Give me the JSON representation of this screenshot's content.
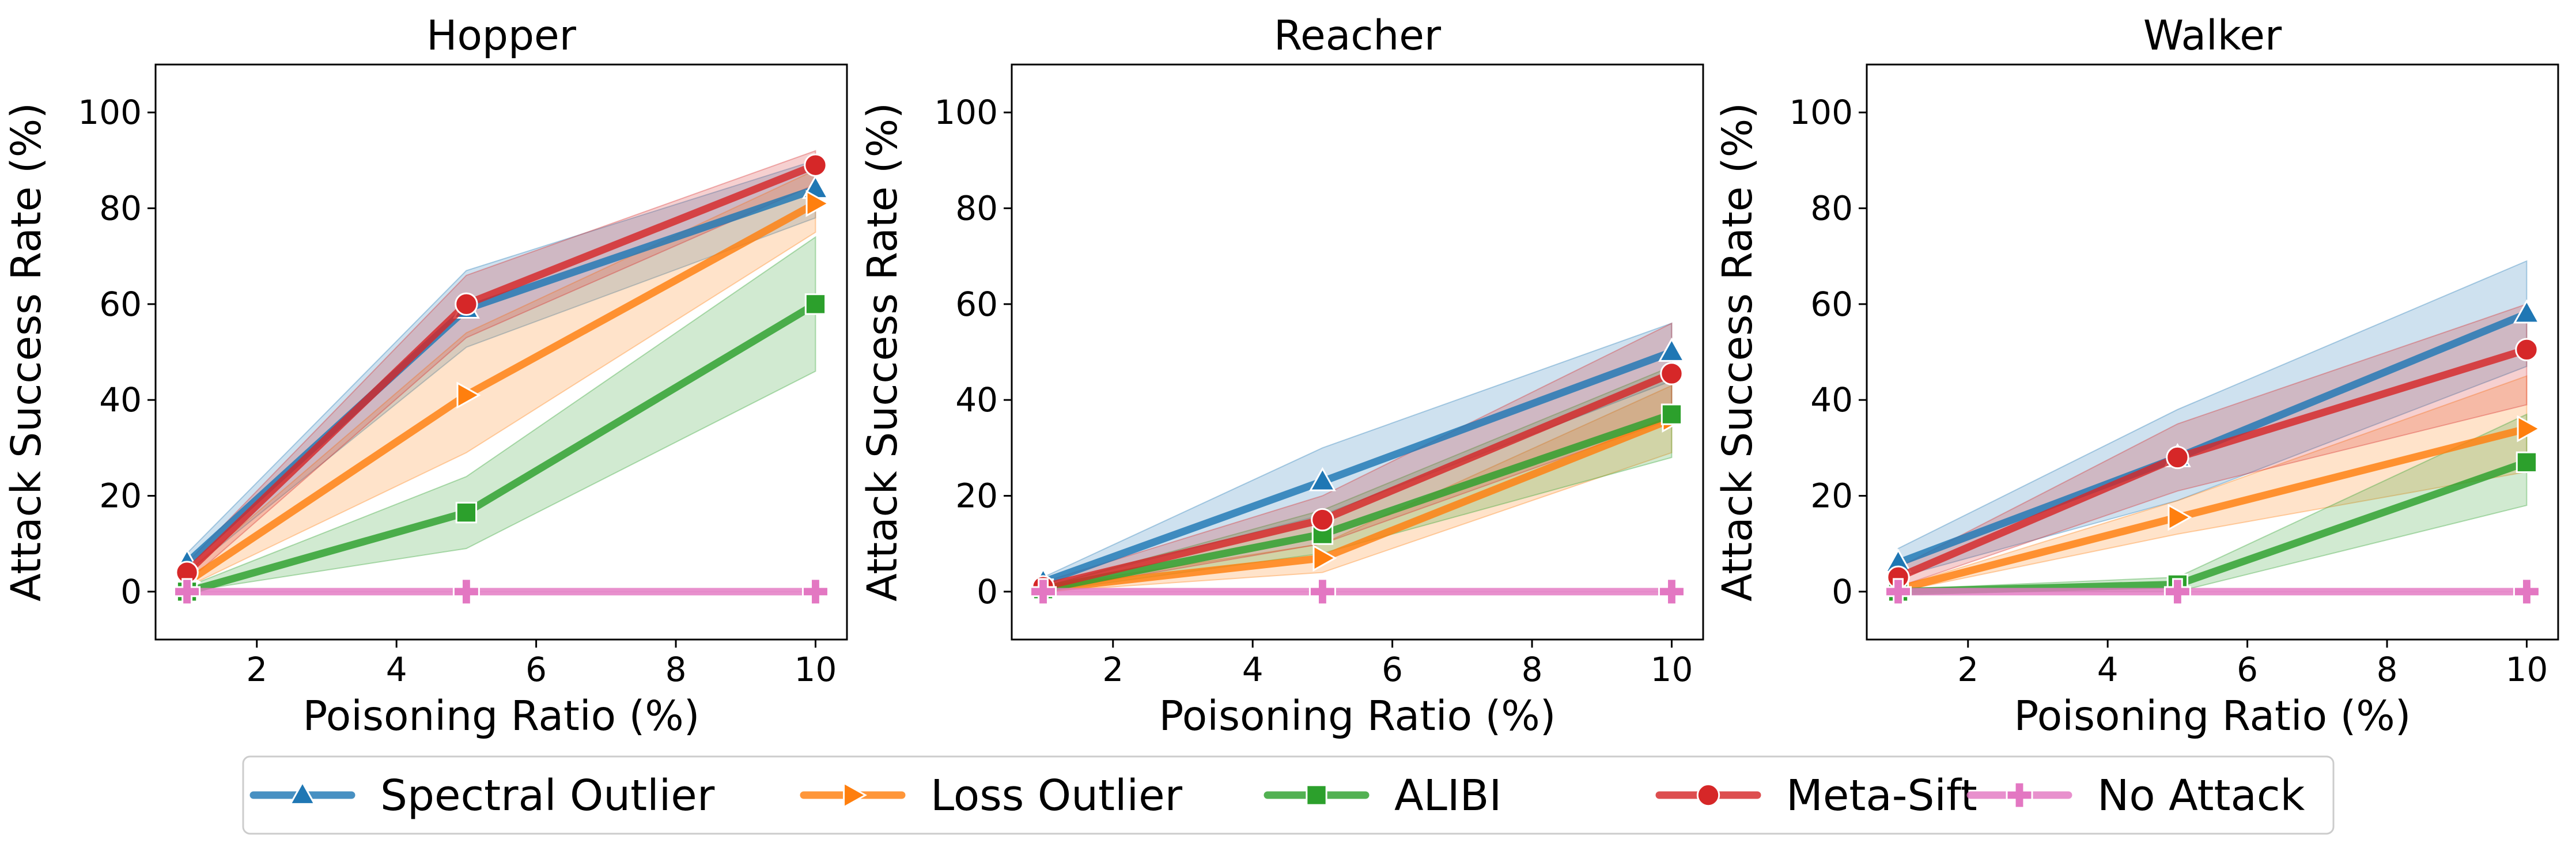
{
  "chart_data": {
    "type": "line",
    "legend": {
      "position": "bottom-center",
      "entries": [
        {
          "name": "Spectral Outlier",
          "color": "#1f77b4",
          "marker": "triangle-up"
        },
        {
          "name": "Loss Outlier",
          "color": "#ff7f0e",
          "marker": "triangle-right"
        },
        {
          "name": "ALIBI",
          "color": "#2ca02c",
          "marker": "square"
        },
        {
          "name": "Meta-Sift",
          "color": "#d62728",
          "marker": "circle"
        },
        {
          "name": "No Attack",
          "color": "#e377c2",
          "marker": "plus"
        }
      ]
    },
    "panels": [
      {
        "title": "Hopper",
        "xlabel": "Poisoning Ratio (%)",
        "ylabel": "Attack Success Rate (%)",
        "xlim": [
          0.55,
          10.45
        ],
        "ylim": [
          -10,
          110
        ],
        "xticks": [
          2,
          4,
          6,
          8,
          10
        ],
        "yticks": [
          0,
          20,
          40,
          60,
          80,
          100
        ],
        "x": [
          1,
          5,
          10
        ],
        "series": [
          {
            "name": "Spectral Outlier",
            "values": [
              6,
              59,
              84
            ],
            "lower": [
              4,
              51,
              78
            ],
            "upper": [
              8,
              67,
              90
            ]
          },
          {
            "name": "Loss Outlier",
            "values": [
              2,
              41,
              81
            ],
            "lower": [
              1,
              29,
              75
            ],
            "upper": [
              4,
              54,
              88
            ]
          },
          {
            "name": "ALIBI",
            "values": [
              0,
              16.5,
              60
            ],
            "lower": [
              0,
              9,
              46
            ],
            "upper": [
              1,
              24,
              74
            ]
          },
          {
            "name": "Meta-Sift",
            "values": [
              4,
              60,
              89
            ],
            "lower": [
              2,
              53,
              85
            ],
            "upper": [
              6,
              66,
              92
            ]
          },
          {
            "name": "No Attack",
            "values": [
              0,
              0,
              0
            ],
            "lower": [
              0,
              0,
              0
            ],
            "upper": [
              0,
              0,
              0
            ]
          }
        ]
      },
      {
        "title": "Reacher",
        "xlabel": "Poisoning Ratio (%)",
        "ylabel": "Attack Success Rate (%)",
        "xlim": [
          0.55,
          10.45
        ],
        "ylim": [
          -10,
          110
        ],
        "xticks": [
          2,
          4,
          6,
          8,
          10
        ],
        "yticks": [
          0,
          20,
          40,
          60,
          80,
          100
        ],
        "x": [
          1,
          5,
          10
        ],
        "series": [
          {
            "name": "Spectral Outlier",
            "values": [
              2,
              23,
              50
            ],
            "lower": [
              1,
              16,
              44
            ],
            "upper": [
              3,
              30,
              56
            ]
          },
          {
            "name": "Loss Outlier",
            "values": [
              0.5,
              7,
              36
            ],
            "lower": [
              0,
              4,
              29
            ],
            "upper": [
              1,
              10,
              43
            ]
          },
          {
            "name": "ALIBI",
            "values": [
              0.5,
              12,
              37
            ],
            "lower": [
              0,
              8,
              28
            ],
            "upper": [
              1,
              17,
              47
            ]
          },
          {
            "name": "Meta-Sift",
            "values": [
              1,
              15,
              45.5
            ],
            "lower": [
              0,
              10,
              36
            ],
            "upper": [
              2,
              20,
              56
            ]
          },
          {
            "name": "No Attack",
            "values": [
              0,
              0,
              0
            ],
            "lower": [
              0,
              0,
              0
            ],
            "upper": [
              0,
              0,
              0
            ]
          }
        ]
      },
      {
        "title": "Walker",
        "xlabel": "Poisoning Ratio (%)",
        "ylabel": "Attack Success Rate (%)",
        "xlim": [
          0.55,
          10.45
        ],
        "ylim": [
          -10,
          110
        ],
        "xticks": [
          2,
          4,
          6,
          8,
          10
        ],
        "yticks": [
          0,
          20,
          40,
          60,
          80,
          100
        ],
        "x": [
          1,
          5,
          10
        ],
        "series": [
          {
            "name": "Spectral Outlier",
            "values": [
              6,
              28,
              58
            ],
            "lower": [
              3,
              19,
              47
            ],
            "upper": [
              9,
              38,
              69
            ]
          },
          {
            "name": "Loss Outlier",
            "values": [
              0.5,
              15.5,
              34
            ],
            "lower": [
              0,
              12,
              25
            ],
            "upper": [
              1,
              19,
              45
            ]
          },
          {
            "name": "ALIBI",
            "values": [
              0,
              1.5,
              27
            ],
            "lower": [
              0,
              0,
              18
            ],
            "upper": [
              0.5,
              3,
              37
            ]
          },
          {
            "name": "Meta-Sift",
            "values": [
              3,
              28,
              50.5
            ],
            "lower": [
              1,
              21,
              39
            ],
            "upper": [
              5,
              35,
              60
            ]
          },
          {
            "name": "No Attack",
            "values": [
              0,
              0,
              0
            ],
            "lower": [
              0,
              0,
              0
            ],
            "upper": [
              0,
              0,
              0
            ]
          }
        ]
      }
    ]
  }
}
